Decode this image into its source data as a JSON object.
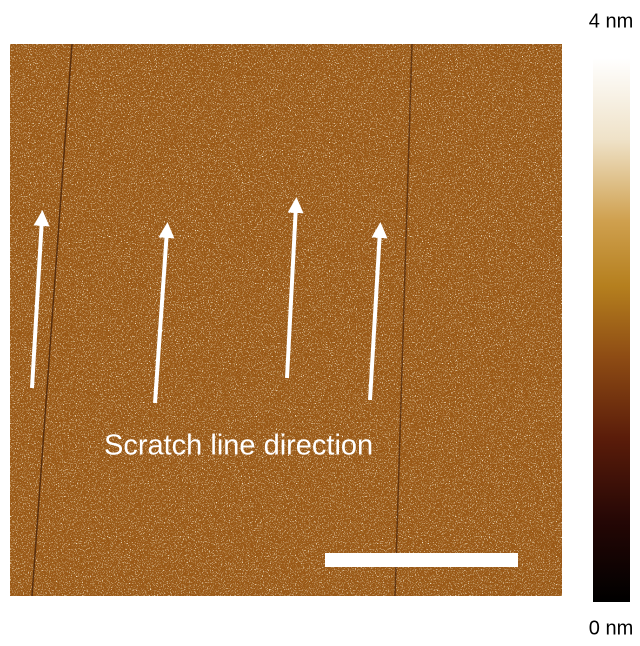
{
  "image": {
    "annotation": "Scratch line direction"
  },
  "colorbar": {
    "max_label": "4 nm",
    "min_label": "0 nm"
  }
}
